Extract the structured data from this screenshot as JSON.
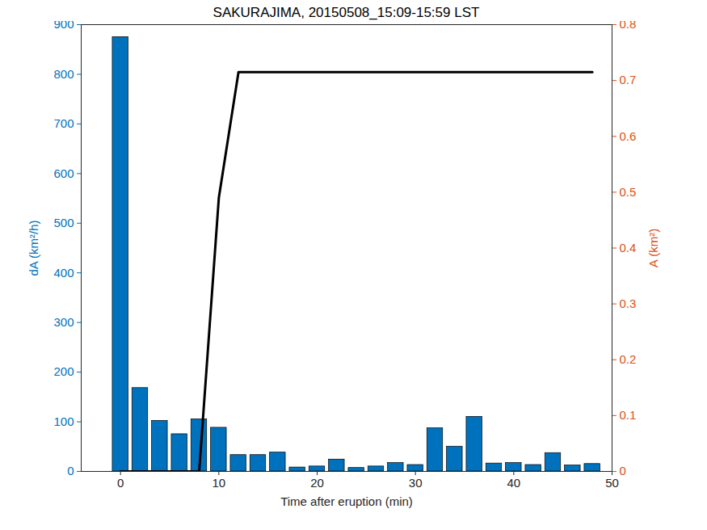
{
  "chart_data": {
    "type": "bar",
    "title": "SAKURAJIMA, 20150508_15:09-15:59 LST",
    "x_label": "Time after eruption (min)",
    "y_label": "dA (km²/h)",
    "y2_label": "A (km²)",
    "x": [
      0,
      2,
      4,
      6,
      8,
      10,
      12,
      14,
      16,
      18,
      20,
      22,
      24,
      26,
      28,
      30,
      32,
      34,
      36,
      38,
      40,
      42,
      44,
      46,
      48
    ],
    "series": [
      {
        "name": "dA",
        "type": "bar",
        "color": "#0072BD",
        "values": [
          875,
          168,
          102,
          75,
          105,
          88,
          33,
          33,
          38,
          8,
          10,
          24,
          7,
          10,
          17,
          13,
          87,
          50,
          110,
          16,
          17,
          13,
          37,
          12,
          15
        ]
      },
      {
        "name": "A",
        "type": "line",
        "axis": "y2",
        "color": "#000000",
        "values": [
          0,
          0,
          0,
          0,
          0,
          0.49,
          0.715,
          0.715,
          0.715,
          0.715,
          0.715,
          0.715,
          0.715,
          0.715,
          0.715,
          0.715,
          0.715,
          0.715,
          0.715,
          0.715,
          0.715,
          0.715,
          0.715,
          0.715,
          0.715
        ]
      }
    ],
    "xlim": [
      -4,
      50
    ],
    "xticks": [
      0,
      10,
      20,
      30,
      40,
      50
    ],
    "ylim": [
      0,
      900
    ],
    "yticks": [
      0,
      100,
      200,
      300,
      400,
      500,
      600,
      700,
      800,
      900
    ],
    "y2lim": [
      0,
      0.8
    ],
    "y2ticks": [
      0,
      0.1,
      0.2,
      0.3,
      0.4,
      0.5,
      0.6,
      0.7,
      0.8
    ],
    "grid": false
  }
}
